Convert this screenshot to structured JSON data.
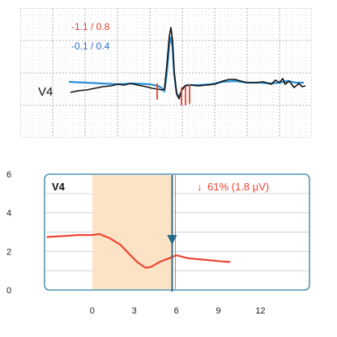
{
  "ecg": {
    "lead_label": "V4",
    "measure_red": "-1.1 / 0.8",
    "measure_blue": "-0.1 / 0.4",
    "colors": {
      "grid_major": "#9a9a9a",
      "grid_minor": "#c8c8c8",
      "trace_current": "#111111",
      "trace_reference": "#2a8fd6",
      "markers": "#e8402a",
      "measure_red": "#e8402a",
      "measure_blue": "#2a6fd6"
    }
  },
  "trend": {
    "lead_label": "V4",
    "change_arrow": "↓",
    "change_text": "61% (1.8 µV)",
    "y_ticks": [
      "6",
      "4",
      "2",
      "0"
    ],
    "x_ticks": [
      "0",
      "3",
      "6",
      "9",
      "12"
    ],
    "colors": {
      "frame": "#2b7fa0",
      "highlight": "#fde3c6",
      "trend_line": "#ee4433",
      "cursor": "#1f6a8a",
      "grid": "#c6d7e0",
      "change_text": "#ee4433"
    },
    "chart_data": {
      "type": "line",
      "title": "V4",
      "xlabel": "",
      "ylabel": "",
      "xlim": [
        -3.4,
        15.5
      ],
      "ylim": [
        0,
        6
      ],
      "x_ticks": [
        0,
        3,
        6,
        9,
        12
      ],
      "y_ticks": [
        0,
        2,
        4,
        6
      ],
      "highlight_range": [
        0,
        5.8
      ],
      "cursor_x": 5.7,
      "series": [
        {
          "values": [
            [
              -3.2,
              2.75
            ],
            [
              -2.0,
              2.8
            ],
            [
              -1.0,
              2.85
            ],
            [
              0.0,
              2.85
            ],
            [
              0.5,
              2.9
            ],
            [
              1.2,
              2.7
            ],
            [
              2.0,
              2.35
            ],
            [
              2.6,
              1.9
            ],
            [
              3.2,
              1.45
            ],
            [
              3.8,
              1.15
            ],
            [
              4.2,
              1.2
            ],
            [
              4.8,
              1.45
            ],
            [
              5.5,
              1.65
            ],
            [
              6.0,
              1.8
            ],
            [
              6.8,
              1.65
            ],
            [
              7.5,
              1.6
            ],
            [
              8.3,
              1.55
            ],
            [
              9.0,
              1.5
            ],
            [
              9.8,
              1.45
            ]
          ]
        }
      ]
    }
  }
}
